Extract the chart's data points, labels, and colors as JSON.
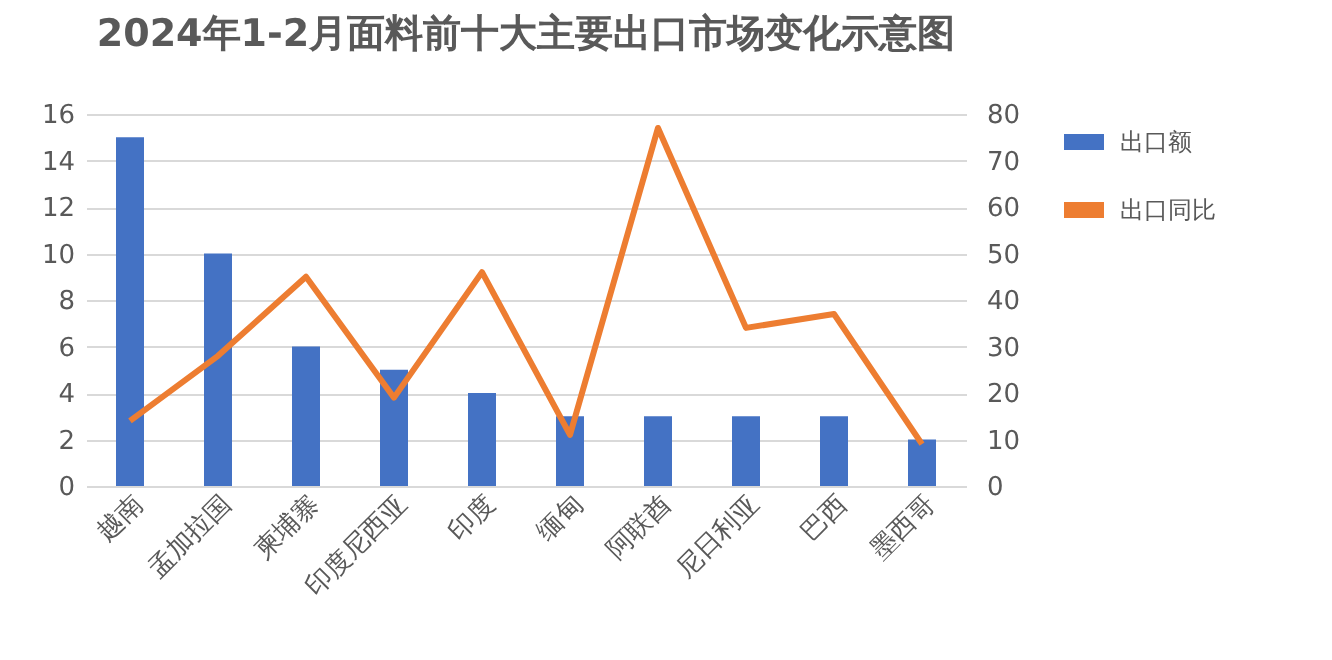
{
  "chart_data": {
    "type": "bar",
    "title": "2024年1-2月面料前十大主要出口市场变化示意图",
    "categories": [
      "越南",
      "孟加拉国",
      "柬埔寨",
      "印度尼西亚",
      "印度",
      "缅甸",
      "阿联酋",
      "尼日利亚",
      "巴西",
      "墨西哥"
    ],
    "series": [
      {
        "name": "出口额",
        "color": "#4472c4",
        "values": [
          15,
          10,
          6,
          5,
          4,
          3,
          3,
          3,
          3,
          2
        ]
      },
      {
        "name": "出口同比",
        "type": "line",
        "axis": "y2",
        "color": "#ed7d31",
        "values": [
          14,
          28,
          45,
          19,
          46,
          11,
          77,
          34,
          37,
          9
        ]
      }
    ],
    "ylim": [
      0,
      16
    ],
    "yticks": [
      0,
      2,
      4,
      6,
      8,
      10,
      12,
      14,
      16
    ],
    "y2lim": [
      0,
      80
    ],
    "y2ticks": [
      0,
      10,
      20,
      30,
      40,
      50,
      60,
      70,
      80
    ],
    "grid": "y",
    "legend": "right",
    "marker": "none",
    "line_style": "solid"
  }
}
